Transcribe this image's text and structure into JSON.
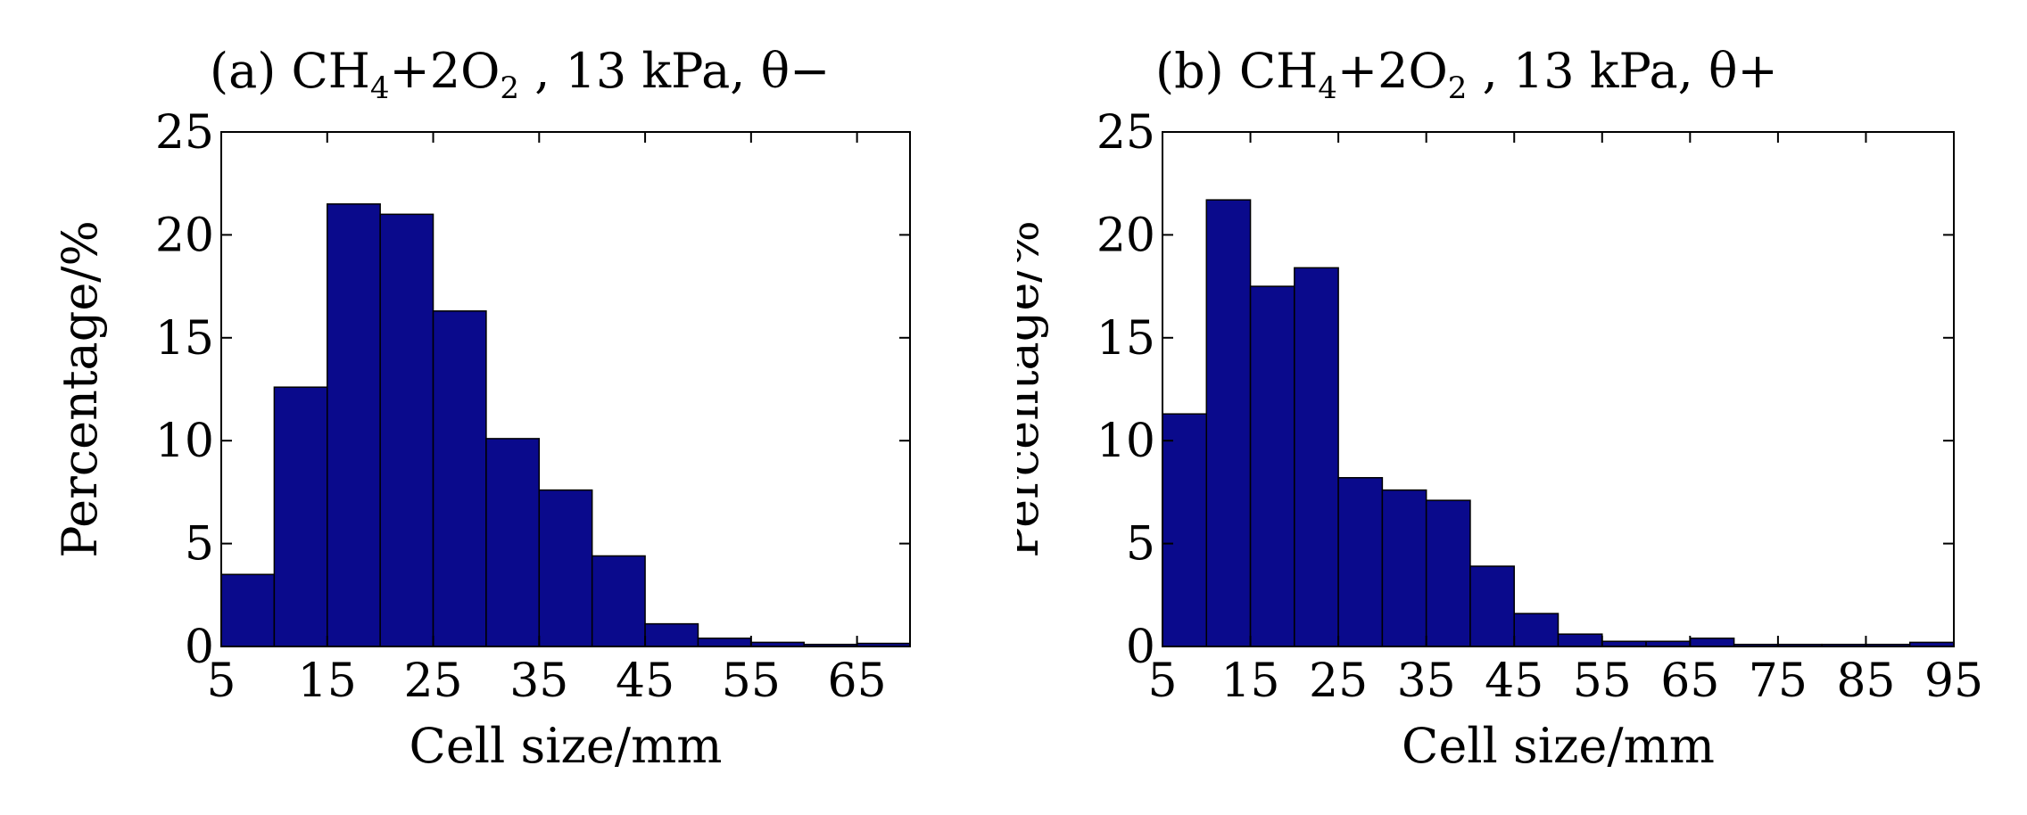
{
  "colors": {
    "bar": "#0a0a8c",
    "bar_edge": "#000000",
    "axis": "#000000",
    "background": "#ffffff"
  },
  "chart_data": [
    {
      "type": "bar",
      "title_parts": {
        "prefix": "(a) CH",
        "sub1": "4",
        "mid": "+2O",
        "sub2": "2",
        "suffix": " , 13 kPa, θ−"
      },
      "xlabel": "Cell size/mm",
      "ylabel": "Percentage/%",
      "xlim": [
        5,
        70
      ],
      "ylim": [
        0,
        25
      ],
      "xticks": [
        5,
        15,
        25,
        35,
        45,
        55,
        65
      ],
      "xtick_labels": [
        "5",
        "15",
        "25",
        "35",
        "45",
        "55",
        "65"
      ],
      "yticks": [
        0,
        5,
        10,
        15,
        20,
        25
      ],
      "ytick_labels": [
        "0",
        "5",
        "10",
        "15",
        "20",
        "25"
      ],
      "bin_edges": [
        5,
        10,
        15,
        20,
        25,
        30,
        35,
        40,
        45,
        50,
        55,
        60,
        65,
        70
      ],
      "values": [
        3.5,
        12.6,
        21.5,
        21.0,
        16.3,
        10.1,
        7.6,
        4.4,
        1.1,
        0.4,
        0.2,
        0.1,
        0.15
      ]
    },
    {
      "type": "bar",
      "title_parts": {
        "prefix": "(b) CH",
        "sub1": "4",
        "mid": "+2O",
        "sub2": "2",
        "suffix": " , 13 kPa, θ+"
      },
      "xlabel": "Cell size/mm",
      "ylabel": "Percentage/%",
      "xlim": [
        5,
        95
      ],
      "ylim": [
        0,
        25
      ],
      "xticks": [
        5,
        15,
        25,
        35,
        45,
        55,
        65,
        75,
        85,
        95
      ],
      "xtick_labels": [
        "5",
        "15",
        "25",
        "35",
        "45",
        "55",
        "65",
        "75",
        "85",
        "95"
      ],
      "yticks": [
        0,
        5,
        10,
        15,
        20,
        25
      ],
      "ytick_labels": [
        "0",
        "5",
        "10",
        "15",
        "20",
        "25"
      ],
      "bin_edges": [
        5,
        10,
        15,
        20,
        25,
        30,
        35,
        40,
        45,
        50,
        55,
        60,
        65,
        70,
        75,
        80,
        85,
        90,
        95
      ],
      "values": [
        11.3,
        21.7,
        17.5,
        18.4,
        8.2,
        7.6,
        7.1,
        3.9,
        1.6,
        0.6,
        0.25,
        0.25,
        0.4,
        0.1,
        0.1,
        0.1,
        0.1,
        0.2
      ]
    }
  ]
}
